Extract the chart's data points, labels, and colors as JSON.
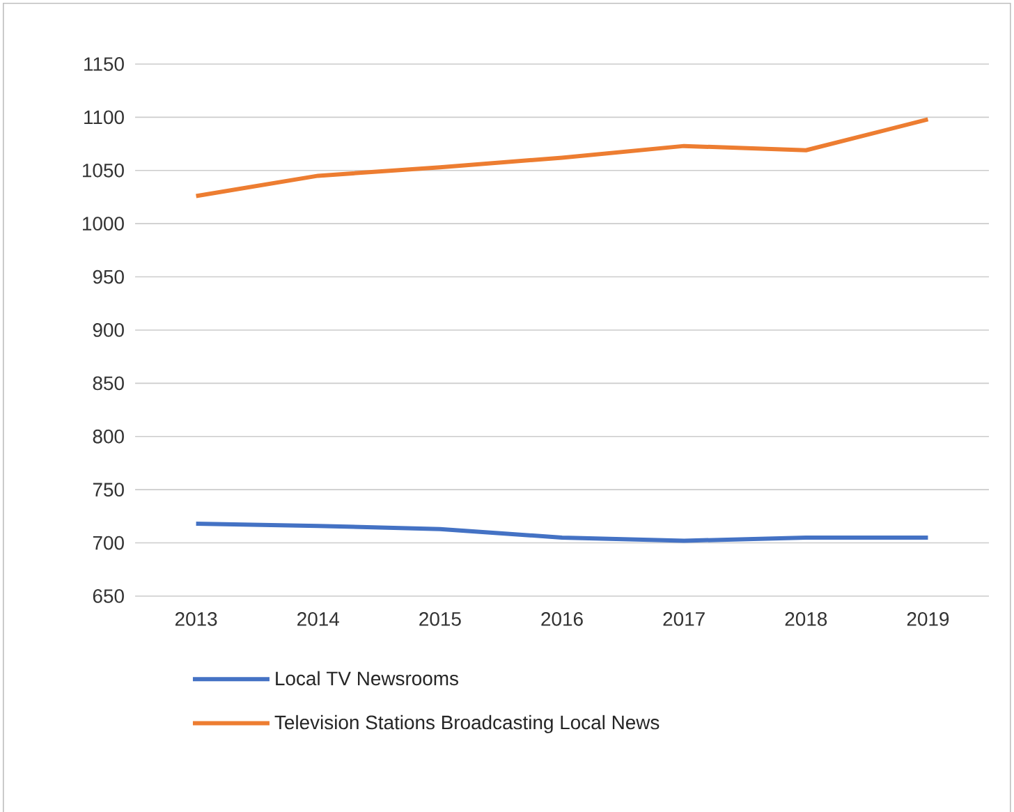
{
  "chart_data": {
    "type": "line",
    "categories": [
      "2013",
      "2014",
      "2015",
      "2016",
      "2017",
      "2018",
      "2019"
    ],
    "series": [
      {
        "name": "Local TV Newsrooms",
        "color": "#4472c4",
        "values": [
          718,
          716,
          713,
          705,
          702,
          705,
          705
        ]
      },
      {
        "name": "Television Stations Broadcasting Local News",
        "color": "#ed7d31",
        "values": [
          1026,
          1045,
          1053,
          1062,
          1073,
          1069,
          1098
        ]
      }
    ],
    "ylim": [
      650,
      1150
    ],
    "yticks": [
      650,
      700,
      750,
      800,
      850,
      900,
      950,
      1000,
      1050,
      1100,
      1150
    ],
    "grid": "y",
    "legend": "bottom",
    "marker": "none",
    "line_style": "solid"
  }
}
